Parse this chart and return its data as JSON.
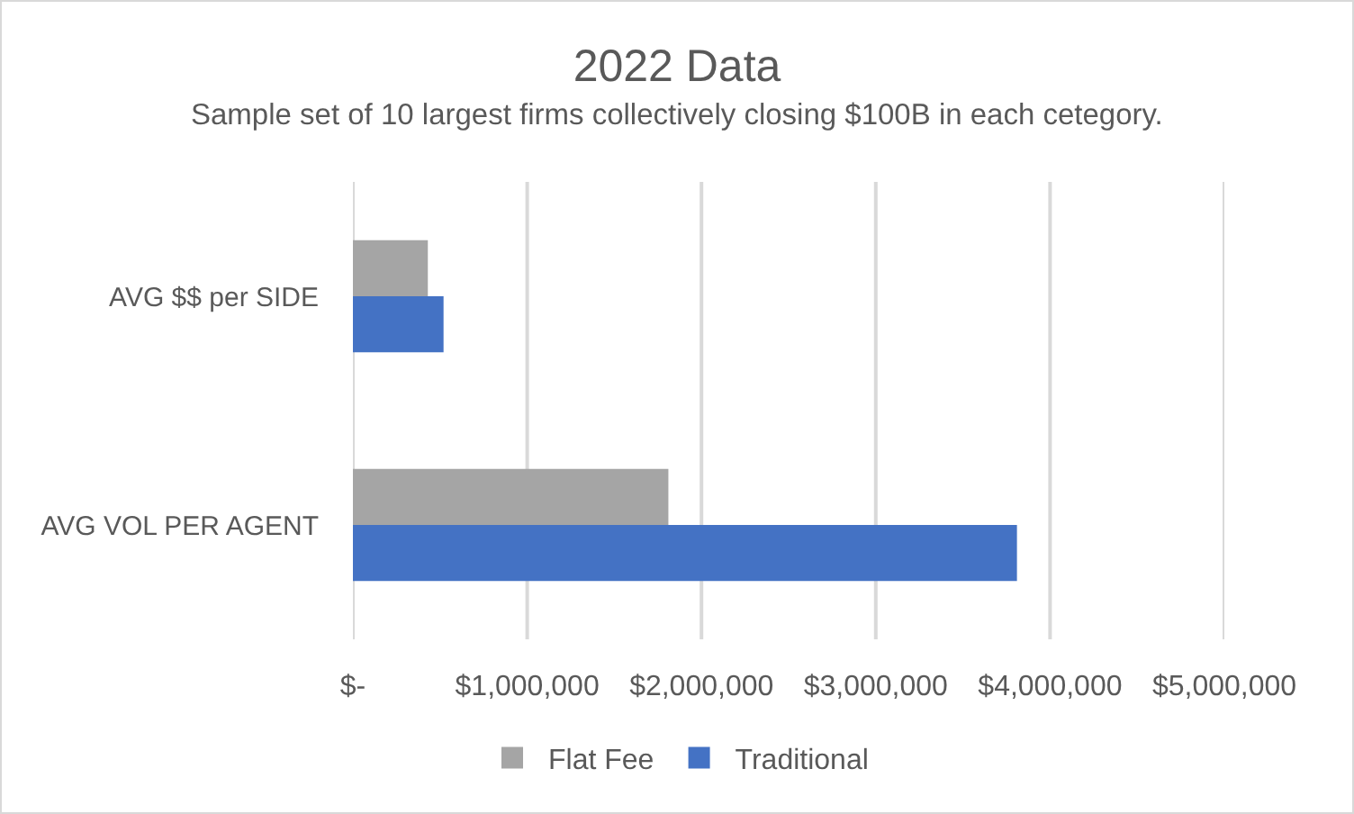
{
  "chart_data": {
    "type": "bar",
    "title": "2022 Data",
    "subtitle": "Sample set of 10 largest firms collectively closing $100B in each cetegory.",
    "orientation": "horizontal",
    "categories": [
      "AVG $$ per SIDE",
      "AVG VOL PER AGENT"
    ],
    "series": [
      {
        "name": "Flat Fee",
        "color": "#a5a5a5",
        "values": [
          430000,
          1810000
        ]
      },
      {
        "name": "Traditional",
        "color": "#4472c4",
        "values": [
          520000,
          3810000
        ]
      }
    ],
    "xlim": [
      0,
      5000000
    ],
    "xticks": [
      {
        "value": 0,
        "label": "$-"
      },
      {
        "value": 1000000,
        "label": "$1,000,000"
      },
      {
        "value": 2000000,
        "label": "$2,000,000"
      },
      {
        "value": 3000000,
        "label": "$3,000,000"
      },
      {
        "value": 4000000,
        "label": "$4,000,000"
      },
      {
        "value": 5000000,
        "label": "$5,000,000"
      }
    ],
    "grid": "x",
    "legend": "bottom"
  }
}
